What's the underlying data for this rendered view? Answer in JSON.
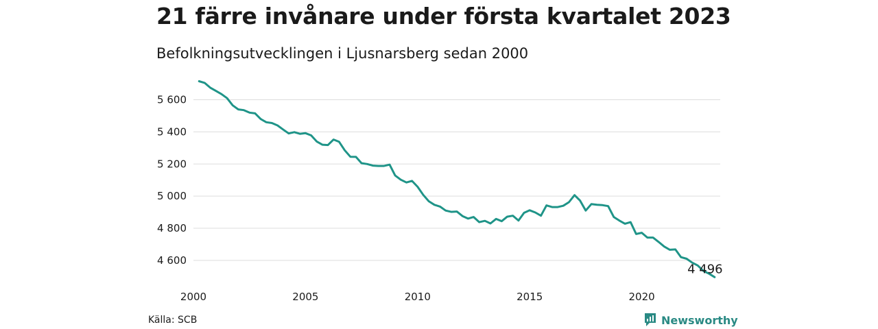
{
  "header": {
    "title": "21 färre invånare under första kvartalet 2023",
    "subtitle": "Befolkningsutvecklingen i Ljusnarsberg sedan 2000"
  },
  "footer": {
    "source": "Källa: SCB",
    "brand": "Newsworthy"
  },
  "colors": {
    "line": "#1f9488",
    "grid": "#dddddd",
    "brand": "#2a8a84"
  },
  "chart_data": {
    "type": "line",
    "title": "21 färre invånare under första kvartalet 2023",
    "subtitle": "Befolkningsutvecklingen i Ljusnarsberg sedan 2000",
    "xlabel": "",
    "ylabel": "",
    "x_ticks": [
      "2000",
      "2005",
      "2010",
      "2015",
      "2020"
    ],
    "y_ticks": [
      "4 600",
      "4 800",
      "5 000",
      "5 200",
      "5 400",
      "5 600"
    ],
    "y_tick_values": [
      4600,
      4800,
      5000,
      5200,
      5400,
      5600
    ],
    "xlim": [
      2000,
      2023.5
    ],
    "ylim": [
      4480,
      5760
    ],
    "grid": true,
    "end_label": "4 496",
    "series": [
      {
        "x": [
          2000.25,
          2000.5,
          2000.75,
          2001,
          2001.25,
          2001.5,
          2001.75,
          2002,
          2002.25,
          2002.5,
          2002.75,
          2003,
          2003.25,
          2003.5,
          2003.75,
          2004,
          2004.25,
          2004.5,
          2004.75,
          2005,
          2005.25,
          2005.5,
          2005.75,
          2006,
          2006.25,
          2006.5,
          2006.75,
          2007,
          2007.25,
          2007.5,
          2007.75,
          2008,
          2008.25,
          2008.5,
          2008.75,
          2009,
          2009.25,
          2009.5,
          2009.75,
          2010,
          2010.25,
          2010.5,
          2010.75,
          2011,
          2011.25,
          2011.5,
          2011.75,
          2012,
          2012.25,
          2012.5,
          2012.75,
          2013,
          2013.25,
          2013.5,
          2013.75,
          2014,
          2014.25,
          2014.5,
          2014.75,
          2015,
          2015.25,
          2015.5,
          2015.75,
          2016,
          2016.25,
          2016.5,
          2016.75,
          2017,
          2017.25,
          2017.5,
          2017.75,
          2018,
          2018.25,
          2018.5,
          2018.75,
          2019,
          2019.25,
          2019.5,
          2019.75,
          2020,
          2020.25,
          2020.5,
          2020.75,
          2021,
          2021.25,
          2021.5,
          2021.75,
          2022,
          2022.25,
          2022.5,
          2022.75,
          2023,
          2023.25
        ],
        "values": [
          5715,
          5705,
          5675,
          5655,
          5635,
          5610,
          5565,
          5540,
          5535,
          5520,
          5515,
          5480,
          5460,
          5455,
          5440,
          5415,
          5390,
          5398,
          5388,
          5392,
          5378,
          5340,
          5320,
          5318,
          5352,
          5338,
          5285,
          5245,
          5244,
          5205,
          5200,
          5190,
          5188,
          5188,
          5196,
          5128,
          5102,
          5085,
          5095,
          5058,
          5008,
          4968,
          4946,
          4935,
          4910,
          4902,
          4904,
          4876,
          4860,
          4870,
          4838,
          4846,
          4830,
          4858,
          4844,
          4872,
          4878,
          4848,
          4896,
          4912,
          4898,
          4878,
          4942,
          4932,
          4932,
          4940,
          4962,
          5006,
          4972,
          4910,
          4950,
          4946,
          4944,
          4938,
          4870,
          4848,
          4828,
          4838,
          4764,
          4772,
          4742,
          4742,
          4715,
          4686,
          4666,
          4668,
          4620,
          4610,
          4586,
          4568,
          4534,
          4517,
          4496
        ]
      }
    ]
  }
}
